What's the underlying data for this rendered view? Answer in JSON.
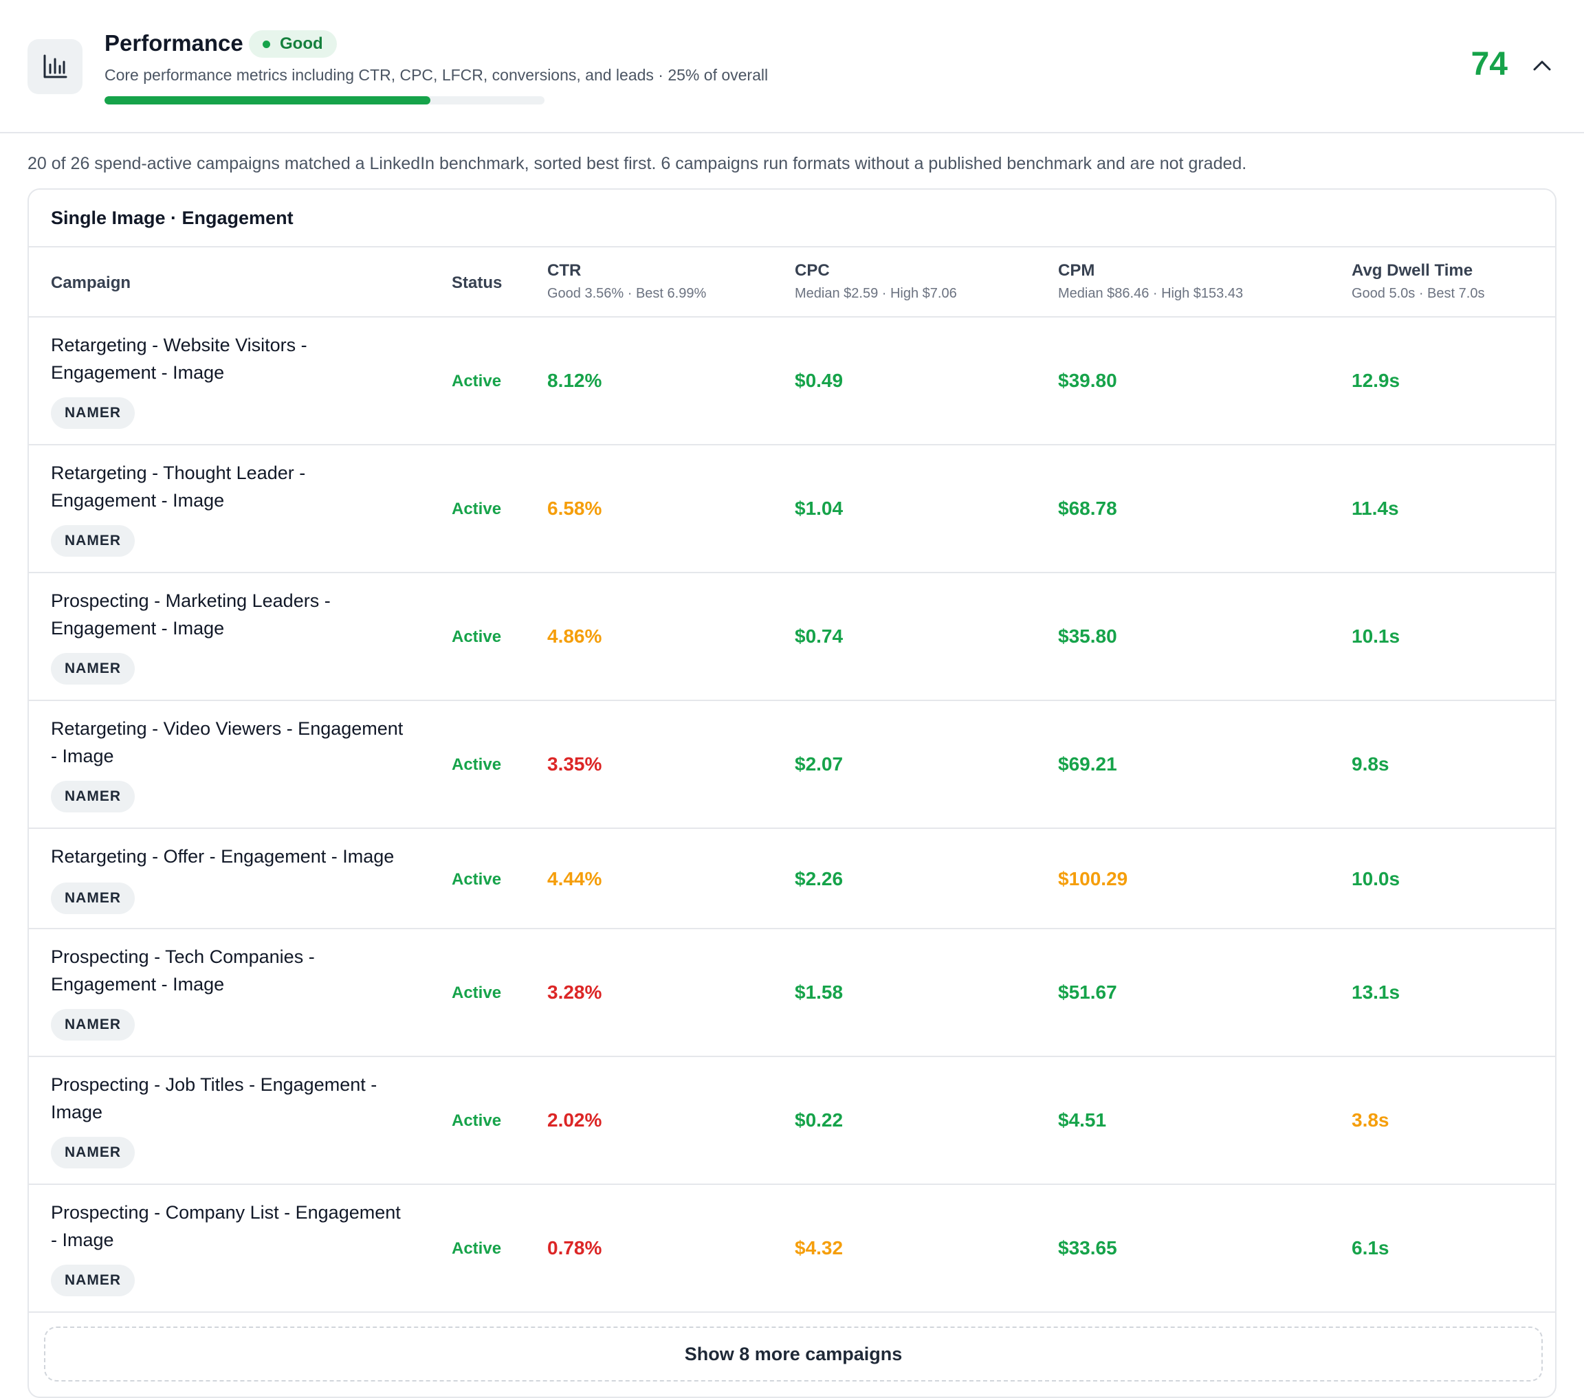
{
  "header": {
    "icon": "bar-chart-icon",
    "title": "Performance",
    "badge": "Good",
    "description": "Core performance metrics including CTR, CPC, LFCR, conversions, and leads · 25% of overall",
    "progress_percent": 74,
    "score": "74",
    "collapse_icon": "chevron-up-icon"
  },
  "summary": "20 of 26 spend-active campaigns matched a LinkedIn benchmark, sorted best first. 6 campaigns run formats without a published benchmark and are not graded.",
  "card": {
    "title": "Single Image · Engagement",
    "columns": {
      "campaign": "Campaign",
      "status": "Status",
      "ctr": "CTR",
      "ctr_sub": "Good 3.56% · Best 6.99%",
      "cpc": "CPC",
      "cpc_sub": "Median $2.59 · High $7.06",
      "cpm": "CPM",
      "cpm_sub": "Median $86.46 · High $153.43",
      "dwell": "Avg Dwell Time",
      "dwell_sub": "Good 5.0s · Best 7.0s"
    },
    "rows": [
      {
        "line1": "Retargeting - Website Visitors -",
        "line2": "Engagement - Image",
        "tag": "NAMER",
        "status": "Active",
        "ctr": "8.12%",
        "cpc": "$0.49",
        "cpm": "$39.80",
        "dwell": "12.9s"
      },
      {
        "line1": "Retargeting - Thought Leader -",
        "line2": "Engagement - Image",
        "tag": "NAMER",
        "status": "Active",
        "ctr": "6.58%",
        "cpc": "$1.04",
        "cpm": "$68.78",
        "dwell": "11.4s"
      },
      {
        "line1": "Prospecting - Marketing Leaders -",
        "line2": "Engagement - Image",
        "tag": "NAMER",
        "status": "Active",
        "ctr": "4.86%",
        "cpc": "$0.74",
        "cpm": "$35.80",
        "dwell": "10.1s"
      },
      {
        "line1": "Retargeting - Video Viewers - Engagement",
        "line2": "- Image",
        "tag": "NAMER",
        "status": "Active",
        "ctr": "3.35%",
        "cpc": "$2.07",
        "cpm": "$69.21",
        "dwell": "9.8s"
      },
      {
        "line1": "Retargeting - Offer - Engagement - Image",
        "line2": "",
        "tag": "NAMER",
        "status": "Active",
        "ctr": "4.44%",
        "cpc": "$2.26",
        "cpm": "$100.29",
        "dwell": "10.0s"
      },
      {
        "line1": "Prospecting - Tech Companies -",
        "line2": "Engagement - Image",
        "tag": "NAMER",
        "status": "Active",
        "ctr": "3.28%",
        "cpc": "$1.58",
        "cpm": "$51.67",
        "dwell": "13.1s"
      },
      {
        "line1": "Prospecting - Job Titles - Engagement -",
        "line2": "Image",
        "tag": "NAMER",
        "status": "Active",
        "ctr": "2.02%",
        "cpc": "$0.22",
        "cpm": "$4.51",
        "dwell": "3.8s"
      },
      {
        "line1": "Prospecting - Company List - Engagement",
        "line2": "- Image",
        "tag": "NAMER",
        "status": "Active",
        "ctr": "0.78%",
        "cpc": "$4.32",
        "cpm": "$33.65",
        "dwell": "6.1s"
      }
    ],
    "show_more": "Show 8 more campaigns"
  },
  "colors": {
    "good": "#16a34a",
    "warn": "#f59e0b",
    "bad": "#dc2626"
  }
}
